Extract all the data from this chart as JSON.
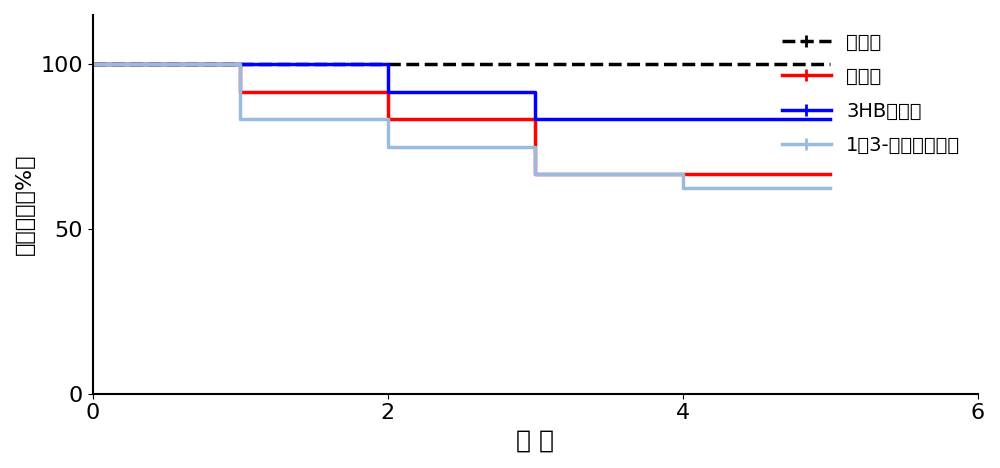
{
  "title": "",
  "xlabel": "天 数",
  "ylabel": "生存比例（%）",
  "xlim": [
    0,
    6
  ],
  "ylim": [
    0,
    115
  ],
  "yticks": [
    0,
    50,
    100
  ],
  "xticks": [
    0,
    2,
    4,
    6
  ],
  "series": [
    {
      "label": "对照组",
      "color": "#000000",
      "linewidth": 2.5,
      "linestyle": "--",
      "x": [
        0,
        5
      ],
      "y": [
        100,
        100
      ]
    },
    {
      "label": "模型组",
      "color": "#FF0000",
      "linewidth": 2.5,
      "linestyle": "-",
      "x": [
        0,
        1,
        1,
        2,
        2,
        3,
        3,
        5
      ],
      "y": [
        100,
        100,
        91.7,
        91.7,
        83.3,
        83.3,
        66.7,
        66.7
      ]
    },
    {
      "label": "3HB治疗组",
      "color": "#0000FF",
      "linewidth": 2.5,
      "linestyle": "-",
      "x": [
        0,
        2,
        2,
        3,
        3,
        5
      ],
      "y": [
        100,
        100,
        91.7,
        91.7,
        83.3,
        83.3
      ]
    },
    {
      "label": "1，3-丁二醇治疗组",
      "color": "#99BBDD",
      "linewidth": 2.5,
      "linestyle": "-",
      "x": [
        0,
        1,
        1,
        2,
        2,
        3,
        3,
        4,
        4,
        5
      ],
      "y": [
        100,
        100,
        83.3,
        83.3,
        75.0,
        75.0,
        66.7,
        66.7,
        62.5,
        62.5
      ]
    }
  ],
  "legend_labels": [
    "对照组",
    "模型组",
    "3HB治疗组",
    "1，3-丁二醇治疗组"
  ],
  "legend_colors": [
    "#000000",
    "#FF0000",
    "#0000FF",
    "#99BBDD"
  ],
  "legend_linestyles": [
    "--",
    "-",
    "-",
    "-"
  ],
  "xlabel_fontsize": 18,
  "ylabel_fontsize": 16,
  "tick_fontsize": 16,
  "legend_fontsize": 14,
  "background_color": "#FFFFFF",
  "marker": "+",
  "marker_size": 10
}
